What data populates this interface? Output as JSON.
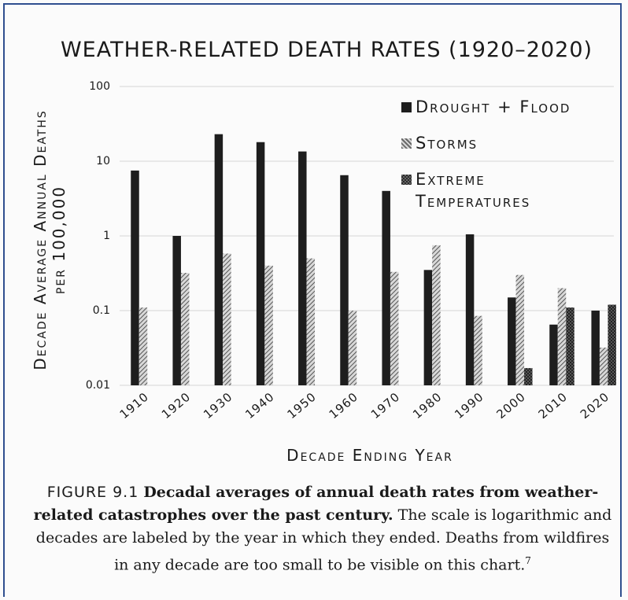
{
  "chart_data": {
    "type": "bar",
    "title": "WEATHER-RELATED DEATH RATES (1920–2020)",
    "y_label": "Decade Average Annual Deaths",
    "y_label_2": "per 100,000",
    "x_label": "Decade Ending Year",
    "categories": [
      "1910",
      "1920",
      "1930",
      "1940",
      "1950",
      "1960",
      "1970",
      "1980",
      "1990",
      "2000",
      "2010",
      "2020"
    ],
    "series": [
      {
        "name": "Drought + Flood",
        "color": "#1e1e1e",
        "values": [
          7.5,
          1.0,
          23,
          18,
          13.5,
          6.5,
          4,
          0.35,
          1.05,
          0.15,
          0.065,
          0.1
        ]
      },
      {
        "name": "Storms",
        "color": "#6a6a6a",
        "values": [
          0.11,
          0.32,
          0.58,
          0.4,
          0.5,
          0.1,
          0.33,
          0.75,
          0.085,
          0.3,
          0.2,
          0.032
        ]
      },
      {
        "name": "Extreme Temperatures",
        "color": "#2a2a2a",
        "values": [
          null,
          null,
          null,
          null,
          null,
          null,
          null,
          null,
          null,
          0.017,
          0.11,
          0.12
        ]
      }
    ],
    "ylim": [
      0.01,
      100
    ],
    "yticks": [
      0.01,
      0.1,
      1,
      10,
      100
    ],
    "log_y": true,
    "grid": true,
    "legend": "top-right"
  },
  "caption": {
    "label": "FIGURE 9.1",
    "bold": "Decadal averages of annual death rates from weather-related catastrophes over the past century.",
    "text": "The scale is logarithmic and decades are labeled by the year in which they ended. Deaths from wildfires in any decade are too small to be visible on this chart.",
    "note": "7"
  }
}
